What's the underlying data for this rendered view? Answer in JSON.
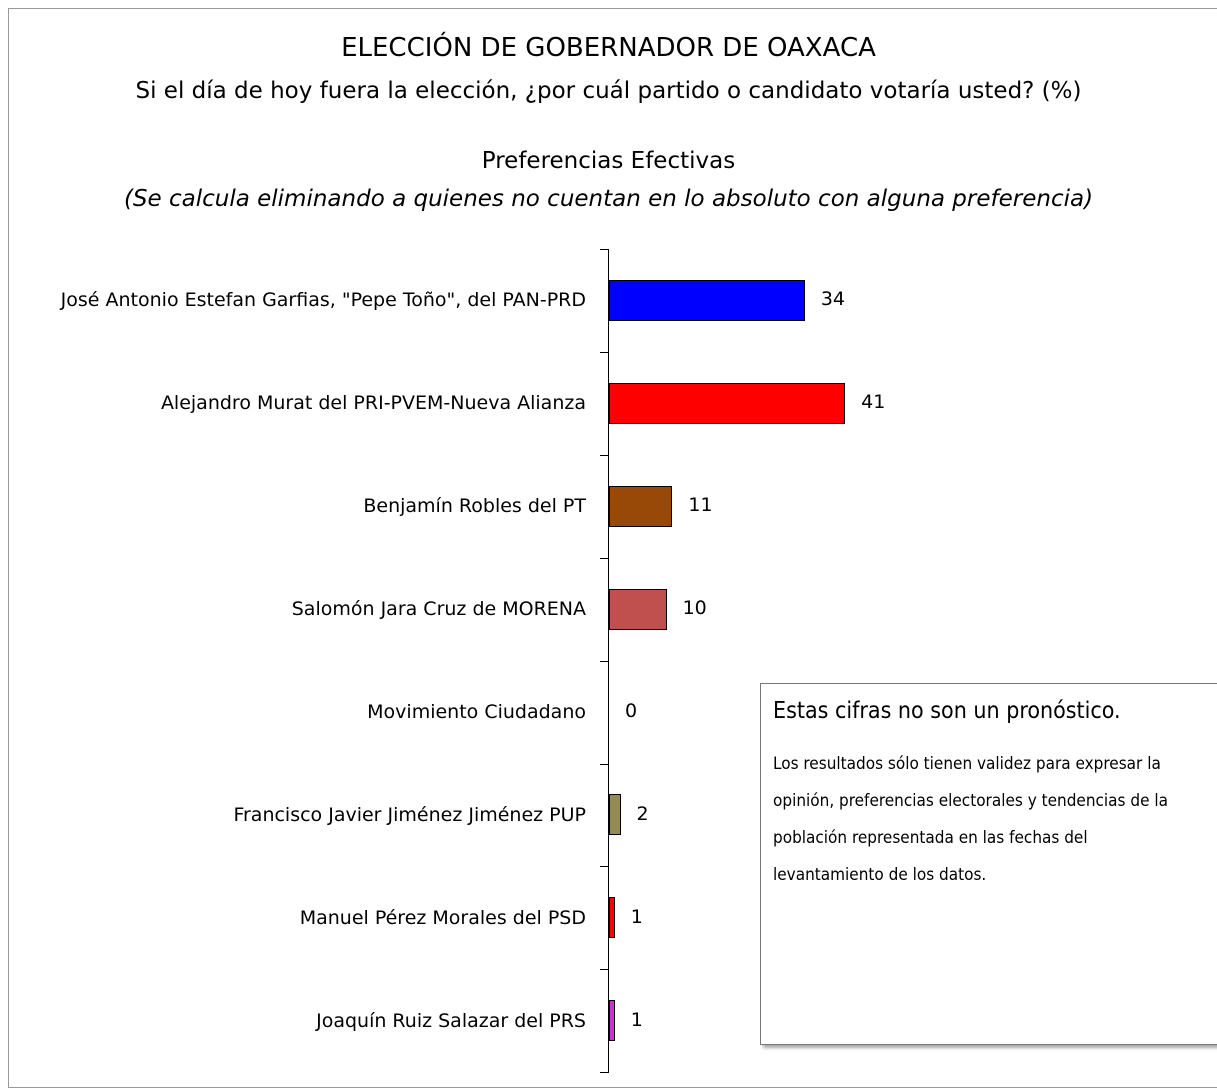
{
  "chart_data": {
    "type": "bar",
    "orientation": "horizontal",
    "title": "ELECCIÓN DE GOBERNADOR DE OAXACA",
    "subtitle": "Si el día de hoy fuera la elección, ¿por cuál partido o candidato votaría usted? (%)",
    "section_title": "Preferencias Efectivas",
    "section_note": "(Se calcula eliminando a quienes no cuentan en lo absoluto con alguna preferencia)",
    "categories": [
      "José Antonio Estefan Garfias, \"Pepe Toño\",  del PAN-PRD",
      "Alejandro Murat del PRI-PVEM-Nueva Alianza",
      "Benjamín Robles del PT",
      "Salomón Jara Cruz de MORENA",
      "Movimiento Ciudadano",
      "Francisco Javier Jiménez Jiménez PUP",
      "Manuel Pérez Morales del PSD",
      "Joaquín Ruiz Salazar del PRS"
    ],
    "values": [
      34,
      41,
      11,
      10,
      0,
      2,
      1,
      1
    ],
    "colors": [
      "#0000ff",
      "#ff0000",
      "#984807",
      "#c0504d",
      "#ffffff",
      "#948a54",
      "#ff0000",
      "#cc33cc"
    ],
    "note_title": "Estas cifras no son un pronóstico.",
    "note_text": "Los resultados sólo tienen validez para expresar la opinión, preferencias electorales y tendencias de la población representada en las fechas del levantamiento de los datos."
  }
}
